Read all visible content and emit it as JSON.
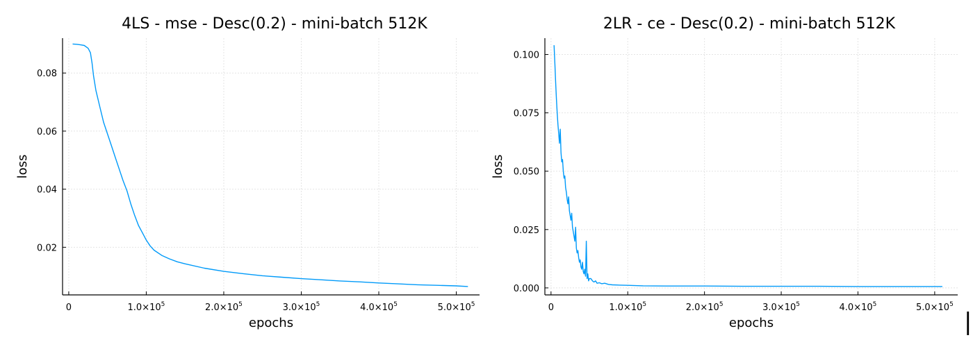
{
  "page": {
    "edge_mark": "|"
  },
  "chart_data": [
    {
      "type": "line",
      "title": "4LS - mse - Desc(0.2) - mini-batch 512K",
      "xlabel": "epochs",
      "ylabel": "loss",
      "xlim": [
        -8000,
        530000
      ],
      "ylim": [
        0.0036,
        0.092
      ],
      "grid": true,
      "legend": "none",
      "line_color": "#009af9",
      "x_ticks": [
        {
          "value": 0,
          "label": "0"
        },
        {
          "value": 100000,
          "label": "1.0×10",
          "exp": "5"
        },
        {
          "value": 200000,
          "label": "2.0×10",
          "exp": "5"
        },
        {
          "value": 300000,
          "label": "3.0×10",
          "exp": "5"
        },
        {
          "value": 400000,
          "label": "4.0×10",
          "exp": "5"
        },
        {
          "value": 500000,
          "label": "5.0×10",
          "exp": "5"
        }
      ],
      "y_ticks": [
        {
          "value": 0.02,
          "label": "0.02"
        },
        {
          "value": 0.04,
          "label": "0.04"
        },
        {
          "value": 0.06,
          "label": "0.06"
        },
        {
          "value": 0.08,
          "label": "0.08"
        }
      ],
      "series": [
        {
          "x": [
            5000,
            10000,
            15000,
            20000,
            25000,
            28000,
            30000,
            32000,
            35000,
            40000,
            45000,
            50000,
            55000,
            60000,
            65000,
            70000,
            75000,
            80000,
            85000,
            90000,
            95000,
            100000,
            105000,
            110000,
            120000,
            130000,
            140000,
            150000,
            175000,
            200000,
            225000,
            250000,
            275000,
            300000,
            325000,
            350000,
            375000,
            400000,
            425000,
            450000,
            475000,
            500000,
            515000
          ],
          "y": [
            0.09,
            0.0899,
            0.0897,
            0.0895,
            0.0885,
            0.087,
            0.0835,
            0.079,
            0.074,
            0.0685,
            0.063,
            0.059,
            0.055,
            0.051,
            0.047,
            0.043,
            0.0395,
            0.035,
            0.031,
            0.0275,
            0.025,
            0.0225,
            0.0205,
            0.019,
            0.0172,
            0.016,
            0.015,
            0.0143,
            0.0128,
            0.0117,
            0.0109,
            0.0102,
            0.0097,
            0.0092,
            0.0088,
            0.0084,
            0.0081,
            0.0077,
            0.0074,
            0.0071,
            0.0069,
            0.0067,
            0.0065
          ]
        }
      ]
    },
    {
      "type": "line",
      "title": "2LR - ce - Desc(0.2) - mini-batch 512K",
      "xlabel": "epochs",
      "ylabel": "loss",
      "xlim": [
        -8000,
        530000
      ],
      "ylim": [
        -0.003,
        0.107
      ],
      "grid": true,
      "legend": "none",
      "line_color": "#009af9",
      "x_ticks": [
        {
          "value": 0,
          "label": "0"
        },
        {
          "value": 100000,
          "label": "1.0×10",
          "exp": "5"
        },
        {
          "value": 200000,
          "label": "2.0×10",
          "exp": "5"
        },
        {
          "value": 300000,
          "label": "3.0×10",
          "exp": "5"
        },
        {
          "value": 400000,
          "label": "4.0×10",
          "exp": "5"
        },
        {
          "value": 500000,
          "label": "5.0×10",
          "exp": "5"
        }
      ],
      "y_ticks": [
        {
          "value": 0.0,
          "label": "0.000"
        },
        {
          "value": 0.025,
          "label": "0.025"
        },
        {
          "value": 0.05,
          "label": "0.050"
        },
        {
          "value": 0.075,
          "label": "0.075"
        },
        {
          "value": 0.1,
          "label": "0.100"
        }
      ],
      "series": [
        {
          "x": [
            4000,
            5000,
            6000,
            7000,
            8000,
            9000,
            10000,
            11000,
            12000,
            13000,
            14000,
            15000,
            16000,
            17000,
            18000,
            19000,
            20000,
            21000,
            22000,
            23000,
            24000,
            25000,
            26000,
            27000,
            28000,
            29000,
            30000,
            31000,
            32000,
            33000,
            34000,
            35000,
            36000,
            37000,
            38000,
            39000,
            40000,
            41000,
            42000,
            43000,
            44000,
            45000,
            46000,
            47000,
            48000,
            49000,
            50000,
            52000,
            54000,
            56000,
            58000,
            60000,
            63000,
            66000,
            70000,
            75000,
            80000,
            90000,
            100000,
            120000,
            150000,
            200000,
            250000,
            300000,
            350000,
            400000,
            450000,
            500000,
            510000
          ],
          "y": [
            0.104,
            0.096,
            0.088,
            0.081,
            0.075,
            0.07,
            0.066,
            0.062,
            0.068,
            0.058,
            0.054,
            0.055,
            0.05,
            0.047,
            0.048,
            0.043,
            0.041,
            0.038,
            0.036,
            0.039,
            0.033,
            0.031,
            0.029,
            0.032,
            0.026,
            0.024,
            0.022,
            0.02,
            0.026,
            0.017,
            0.015,
            0.016,
            0.013,
            0.011,
            0.012,
            0.009,
            0.008,
            0.011,
            0.007,
            0.006,
            0.008,
            0.005,
            0.02,
            0.004,
            0.006,
            0.003,
            0.004,
            0.004,
            0.003,
            0.0025,
            0.003,
            0.002,
            0.0022,
            0.0018,
            0.002,
            0.0015,
            0.0013,
            0.0012,
            0.0011,
            0.0009,
            0.0008,
            0.0008,
            0.0007,
            0.0007,
            0.0007,
            0.0006,
            0.0006,
            0.0006,
            0.0006
          ]
        }
      ]
    }
  ]
}
